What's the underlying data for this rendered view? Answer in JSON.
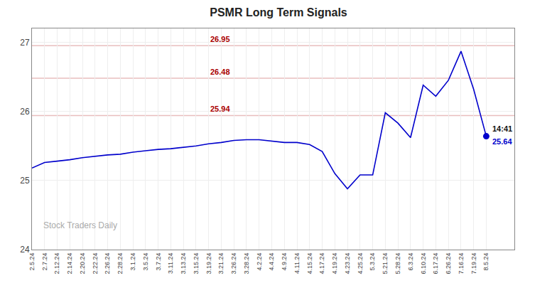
{
  "chart_data": {
    "type": "line",
    "title": "PSMR Long Term Signals",
    "categories": [
      "2.5.24",
      "2.7.24",
      "2.12.24",
      "2.14.24",
      "2.20.24",
      "2.22.24",
      "2.26.24",
      "2.28.24",
      "3.1.24",
      "3.5.24",
      "3.7.24",
      "3.11.24",
      "3.13.24",
      "3.15.24",
      "3.19.24",
      "3.21.24",
      "3.26.24",
      "3.28.24",
      "4.2.24",
      "4.4.24",
      "4.9.24",
      "4.11.24",
      "4.15.24",
      "4.17.24",
      "4.19.24",
      "4.23.24",
      "4.25.24",
      "5.3.24",
      "5.21.24",
      "5.28.24",
      "6.3.24",
      "6.10.24",
      "6.17.24",
      "6.26.24",
      "7.16.24",
      "7.19.24",
      "8.5.24"
    ],
    "values": [
      25.18,
      25.26,
      25.28,
      25.3,
      25.33,
      25.35,
      25.37,
      25.38,
      25.41,
      25.43,
      25.45,
      25.46,
      25.48,
      25.5,
      25.53,
      25.55,
      25.58,
      25.59,
      25.59,
      25.57,
      25.55,
      25.55,
      25.52,
      25.42,
      25.1,
      24.88,
      25.08,
      25.08,
      25.98,
      25.83,
      25.62,
      26.38,
      26.22,
      26.45,
      26.87,
      26.32,
      25.64
    ],
    "color": "#0000cc",
    "ylim": [
      24.0,
      27.2
    ],
    "yticks": [
      24,
      25,
      26,
      27
    ],
    "grid": true,
    "hlines": [
      {
        "value": 25.94,
        "label": "25.94",
        "color": "#aa0000"
      },
      {
        "value": 26.48,
        "label": "26.48",
        "color": "#aa0000"
      },
      {
        "value": 26.95,
        "label": "26.95",
        "color": "#aa0000"
      }
    ],
    "annotations": [
      {
        "text": "14:41",
        "color": "#111111"
      },
      {
        "text": "25.64",
        "color": "#0000cc"
      }
    ],
    "watermark": "Stock Traders Daily"
  }
}
